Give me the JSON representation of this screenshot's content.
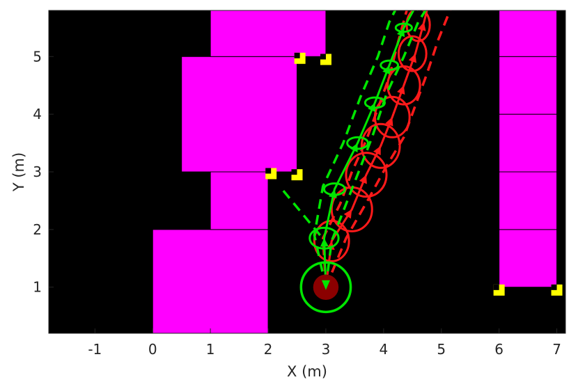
{
  "chart_data": {
    "type": "scatter",
    "title": "",
    "xlabel": "X (m)",
    "ylabel": "Y (m)",
    "xlim": [
      -1.8,
      7.15
    ],
    "ylim": [
      0.2,
      5.8
    ],
    "xticks": [
      -1,
      0,
      1,
      2,
      3,
      4,
      5,
      6,
      7
    ],
    "yticks": [
      1,
      2,
      3,
      4,
      5
    ],
    "grid": false,
    "background": "#000000",
    "obstacle_color": "#ff00ff",
    "corner_marker_color": "#ffff00",
    "robot_color": "#8b0000",
    "prediction_a_color": "#00e600",
    "prediction_b_color": "#ff1a1a",
    "obstacles": [
      {
        "x0": 0.0,
        "x1": 2.0,
        "y0": 0.2,
        "y1": 2.0
      },
      {
        "x0": 1.0,
        "x1": 2.0,
        "y0": 2.0,
        "y1": 3.0
      },
      {
        "x0": 0.5,
        "x1": 2.5,
        "y0": 3.0,
        "y1": 5.0
      },
      {
        "x0": 1.0,
        "x1": 3.0,
        "y0": 5.0,
        "y1": 5.8
      },
      {
        "x0": 6.0,
        "x1": 7.0,
        "y0": 1.0,
        "y1": 2.0
      },
      {
        "x0": 6.0,
        "x1": 7.0,
        "y0": 2.0,
        "y1": 3.0
      },
      {
        "x0": 6.0,
        "x1": 7.0,
        "y0": 3.0,
        "y1": 4.0
      },
      {
        "x0": 6.0,
        "x1": 7.0,
        "y0": 4.0,
        "y1": 5.0
      },
      {
        "x0": 6.0,
        "x1": 7.0,
        "y0": 5.0,
        "y1": 5.8
      }
    ],
    "corner_markers": [
      {
        "x": 2.05,
        "y": 2.97
      },
      {
        "x": 2.5,
        "y": 2.95
      },
      {
        "x": 2.55,
        "y": 4.97
      },
      {
        "x": 3.0,
        "y": 4.95
      },
      {
        "x": 6.0,
        "y": 0.95
      },
      {
        "x": 7.0,
        "y": 0.95
      }
    ],
    "robot": {
      "x": 3.0,
      "y": 1.0,
      "r": 0.22,
      "ring_r": 0.43
    },
    "series": [
      {
        "mean": [
          [
            3.0,
            1.0
          ],
          [
            2.97,
            1.85
          ],
          [
            3.15,
            2.7
          ],
          [
            3.55,
            3.5
          ],
          [
            3.85,
            4.2
          ],
          [
            4.1,
            4.85
          ],
          [
            4.35,
            5.5
          ],
          [
            4.6,
            5.95
          ]
        ],
        "upper": [
          [
            3.0,
            1.0
          ],
          [
            3.1,
            1.8
          ],
          [
            3.45,
            2.7
          ],
          [
            3.8,
            3.6
          ],
          [
            4.05,
            4.35
          ],
          [
            4.35,
            5.0
          ],
          [
            4.6,
            5.6
          ],
          [
            4.85,
            6.0
          ]
        ],
        "lower": [
          [
            3.0,
            1.0
          ],
          [
            2.8,
            1.9
          ],
          [
            2.95,
            2.75
          ],
          [
            3.3,
            3.5
          ],
          [
            3.6,
            4.3
          ],
          [
            3.9,
            5.0
          ],
          [
            4.1,
            5.6
          ],
          [
            4.3,
            6.0
          ]
        ],
        "branch": [
          [
            2.9,
            1.9
          ],
          [
            2.2,
            2.75
          ]
        ],
        "ellipses": [
          {
            "x": 2.97,
            "y": 1.85,
            "rx": 0.25,
            "ry": 0.18
          },
          {
            "x": 3.15,
            "y": 2.7,
            "rx": 0.18,
            "ry": 0.1
          },
          {
            "x": 3.55,
            "y": 3.5,
            "rx": 0.18,
            "ry": 0.1
          },
          {
            "x": 3.85,
            "y": 4.2,
            "rx": 0.17,
            "ry": 0.09
          },
          {
            "x": 4.1,
            "y": 4.85,
            "rx": 0.15,
            "ry": 0.08
          },
          {
            "x": 4.35,
            "y": 5.5,
            "rx": 0.14,
            "ry": 0.07
          }
        ]
      },
      {
        "mean": [
          [
            3.0,
            1.0
          ],
          [
            3.1,
            1.8
          ],
          [
            3.45,
            2.35
          ],
          [
            3.7,
            2.95
          ],
          [
            3.95,
            3.45
          ],
          [
            4.15,
            3.95
          ],
          [
            4.35,
            4.5
          ],
          [
            4.55,
            5.05
          ],
          [
            4.7,
            5.6
          ],
          [
            4.8,
            6.0
          ]
        ],
        "upper": [
          [
            3.0,
            1.0
          ],
          [
            3.35,
            1.85
          ],
          [
            3.75,
            2.55
          ],
          [
            4.05,
            3.1
          ],
          [
            4.35,
            3.6
          ],
          [
            4.55,
            4.15
          ],
          [
            4.75,
            4.7
          ],
          [
            4.95,
            5.3
          ],
          [
            5.15,
            5.8
          ]
        ],
        "lower": [
          [
            3.0,
            1.0
          ],
          [
            2.95,
            1.85
          ],
          [
            3.25,
            2.45
          ],
          [
            3.45,
            3.0
          ],
          [
            3.7,
            3.55
          ],
          [
            3.9,
            4.1
          ],
          [
            4.1,
            4.65
          ],
          [
            4.25,
            5.25
          ],
          [
            4.4,
            5.8
          ]
        ],
        "ellipses": [
          {
            "x": 3.1,
            "y": 1.8,
            "rx": 0.3,
            "ry": 0.35
          },
          {
            "x": 3.45,
            "y": 2.35,
            "rx": 0.35,
            "ry": 0.38
          },
          {
            "x": 3.7,
            "y": 2.95,
            "rx": 0.35,
            "ry": 0.38
          },
          {
            "x": 3.95,
            "y": 3.45,
            "rx": 0.33,
            "ry": 0.38
          },
          {
            "x": 4.15,
            "y": 3.95,
            "rx": 0.3,
            "ry": 0.35
          },
          {
            "x": 4.35,
            "y": 4.5,
            "rx": 0.28,
            "ry": 0.33
          },
          {
            "x": 4.5,
            "y": 5.05,
            "rx": 0.24,
            "ry": 0.3
          },
          {
            "x": 4.6,
            "y": 5.55,
            "rx": 0.2,
            "ry": 0.28
          }
        ]
      }
    ]
  }
}
